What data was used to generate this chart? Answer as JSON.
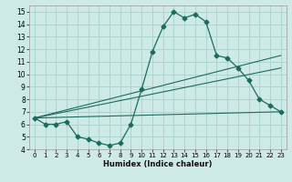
{
  "xlabel": "Humidex (Indice chaleur)",
  "bg_color": "#ceeae7",
  "grid_color": "#aed4d0",
  "line_color": "#1a6b60",
  "xlim": [
    -0.5,
    23.5
  ],
  "ylim": [
    4,
    15.5
  ],
  "xticks": [
    0,
    1,
    2,
    3,
    4,
    5,
    6,
    7,
    8,
    9,
    10,
    11,
    12,
    13,
    14,
    15,
    16,
    17,
    18,
    19,
    20,
    21,
    22,
    23
  ],
  "yticks": [
    4,
    5,
    6,
    7,
    8,
    9,
    10,
    11,
    12,
    13,
    14,
    15
  ],
  "series_main": {
    "x": [
      0,
      1,
      2,
      3,
      4,
      5,
      6,
      7,
      8,
      9,
      10,
      11,
      12,
      13,
      14,
      15,
      16,
      17,
      18,
      19,
      20,
      21,
      22,
      23
    ],
    "y": [
      6.5,
      6.0,
      6.0,
      6.2,
      5.0,
      4.8,
      4.5,
      4.3,
      4.5,
      6.0,
      8.8,
      11.8,
      13.8,
      15.0,
      14.5,
      14.8,
      14.2,
      11.5,
      11.3,
      10.5,
      9.5,
      8.0,
      7.5,
      7.0
    ]
  },
  "series_lines": [
    {
      "x": [
        0,
        23
      ],
      "y": [
        6.5,
        7.0
      ]
    },
    {
      "x": [
        0,
        23
      ],
      "y": [
        6.5,
        10.5
      ]
    },
    {
      "x": [
        0,
        23
      ],
      "y": [
        6.5,
        11.5
      ]
    }
  ]
}
